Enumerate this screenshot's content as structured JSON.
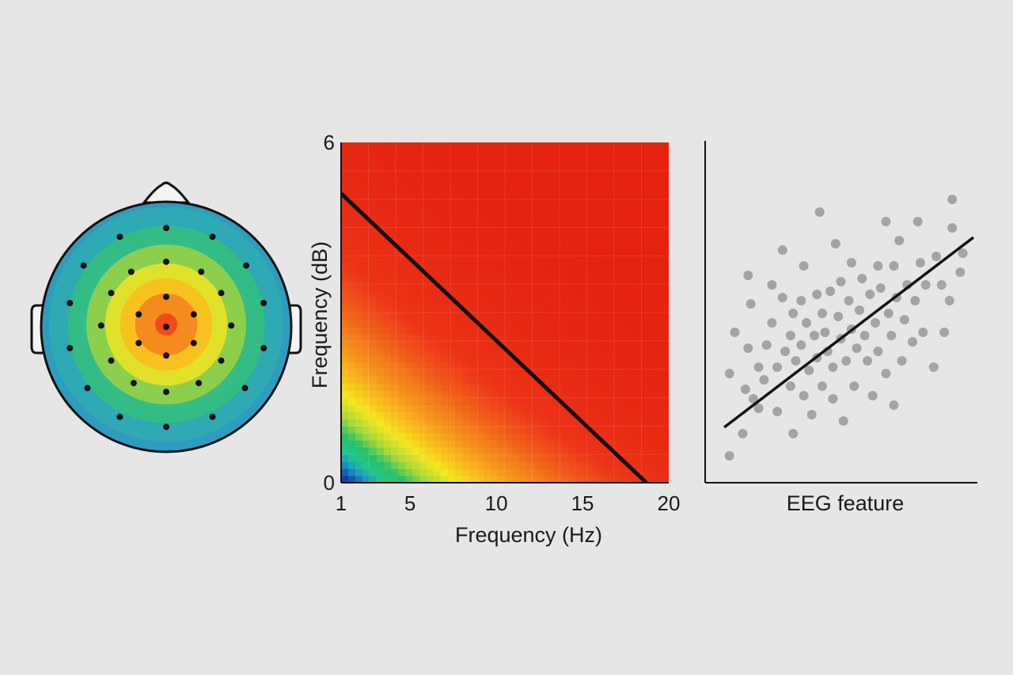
{
  "colors": {
    "background": "#e6e6e6",
    "axis": "#111111",
    "scatter_point": "#a4a4a4",
    "fit_line": "#111111",
    "electrode": "#111111",
    "colormap": [
      "#1a237e",
      "#0d4fb0",
      "#1b97c4",
      "#23c88c",
      "#28c068",
      "#a8d838",
      "#f4e620",
      "#f6b21c",
      "#f47a1c",
      "#ec3418",
      "#e4220e"
    ]
  },
  "chart_data": [
    {
      "type": "topomap",
      "rings": [
        {
          "level": 0.0,
          "color": "#2e9cbf"
        },
        {
          "level": 0.15,
          "color": "#2fa9b3"
        },
        {
          "level": 0.3,
          "color": "#34bc86"
        },
        {
          "level": 0.45,
          "color": "#8ccf4c"
        },
        {
          "level": 0.6,
          "color": "#e2e12a"
        },
        {
          "level": 0.72,
          "color": "#f7c21e"
        },
        {
          "level": 0.84,
          "color": "#f58a1e"
        },
        {
          "level": 1.0,
          "color": "#ef4a1c"
        }
      ],
      "electrodes": [
        {
          "x": 0.0,
          "y": 0.0
        },
        {
          "x": 0.0,
          "y": -0.24
        },
        {
          "x": -0.22,
          "y": -0.1
        },
        {
          "x": 0.22,
          "y": -0.1
        },
        {
          "x": -0.22,
          "y": 0.13
        },
        {
          "x": 0.22,
          "y": 0.13
        },
        {
          "x": 0.0,
          "y": 0.23
        },
        {
          "x": 0.0,
          "y": -0.52
        },
        {
          "x": -0.28,
          "y": -0.44
        },
        {
          "x": 0.28,
          "y": -0.44
        },
        {
          "x": -0.44,
          "y": -0.27
        },
        {
          "x": 0.44,
          "y": -0.27
        },
        {
          "x": -0.52,
          "y": -0.01
        },
        {
          "x": 0.52,
          "y": -0.01
        },
        {
          "x": -0.44,
          "y": 0.27
        },
        {
          "x": 0.44,
          "y": 0.27
        },
        {
          "x": -0.26,
          "y": 0.45
        },
        {
          "x": 0.26,
          "y": 0.45
        },
        {
          "x": 0.0,
          "y": 0.52
        },
        {
          "x": 0.0,
          "y": -0.79
        },
        {
          "x": -0.37,
          "y": -0.72
        },
        {
          "x": 0.37,
          "y": -0.72
        },
        {
          "x": -0.66,
          "y": -0.49
        },
        {
          "x": 0.64,
          "y": -0.49
        },
        {
          "x": -0.77,
          "y": -0.19
        },
        {
          "x": 0.78,
          "y": -0.19
        },
        {
          "x": -0.77,
          "y": 0.17
        },
        {
          "x": 0.78,
          "y": 0.17
        },
        {
          "x": -0.63,
          "y": 0.49
        },
        {
          "x": 0.63,
          "y": 0.49
        },
        {
          "x": -0.37,
          "y": 0.72
        },
        {
          "x": 0.37,
          "y": 0.72
        },
        {
          "x": 0.0,
          "y": 0.8
        }
      ]
    },
    {
      "type": "heatmap",
      "xlabel": "Frequency (Hz)",
      "ylabel": "Frequency (dB)",
      "x_ticks": [
        1,
        5,
        10,
        15,
        20
      ],
      "y_ticks": [
        0,
        6
      ],
      "xlim": [
        1,
        20
      ],
      "ylim": [
        0,
        6
      ],
      "grid": true,
      "intensity_model": "exponential decay along x and y from bottom-left (high) to top-right (low)",
      "decay_constant": 3.0,
      "line": {
        "x": [
          1,
          18.7
        ],
        "y": [
          5.1,
          0
        ]
      }
    },
    {
      "type": "scatter",
      "xlabel": "EEG feature",
      "ylabel": "",
      "xlim": [
        0,
        100
      ],
      "ylim": [
        0,
        100
      ],
      "fit_line": {
        "x": [
          6,
          100
        ],
        "y": [
          15,
          75
        ]
      },
      "points": [
        {
          "x": 8,
          "y": 6
        },
        {
          "x": 8,
          "y": 32
        },
        {
          "x": 10,
          "y": 45
        },
        {
          "x": 14,
          "y": 27
        },
        {
          "x": 13,
          "y": 13
        },
        {
          "x": 15,
          "y": 63
        },
        {
          "x": 16,
          "y": 54
        },
        {
          "x": 15,
          "y": 40
        },
        {
          "x": 17,
          "y": 24
        },
        {
          "x": 19,
          "y": 34
        },
        {
          "x": 19,
          "y": 21
        },
        {
          "x": 21,
          "y": 30
        },
        {
          "x": 22,
          "y": 41
        },
        {
          "x": 24,
          "y": 60
        },
        {
          "x": 24,
          "y": 48
        },
        {
          "x": 26,
          "y": 34
        },
        {
          "x": 26,
          "y": 20
        },
        {
          "x": 28,
          "y": 71
        },
        {
          "x": 28,
          "y": 56
        },
        {
          "x": 29,
          "y": 39
        },
        {
          "x": 31,
          "y": 44
        },
        {
          "x": 31,
          "y": 28
        },
        {
          "x": 32,
          "y": 13
        },
        {
          "x": 32,
          "y": 51
        },
        {
          "x": 33,
          "y": 36
        },
        {
          "x": 35,
          "y": 41
        },
        {
          "x": 35,
          "y": 55
        },
        {
          "x": 36,
          "y": 66
        },
        {
          "x": 36,
          "y": 25
        },
        {
          "x": 37,
          "y": 48
        },
        {
          "x": 38,
          "y": 33
        },
        {
          "x": 39,
          "y": 19
        },
        {
          "x": 40,
          "y": 44
        },
        {
          "x": 41,
          "y": 57
        },
        {
          "x": 41,
          "y": 37
        },
        {
          "x": 42,
          "y": 83
        },
        {
          "x": 43,
          "y": 28
        },
        {
          "x": 43,
          "y": 51
        },
        {
          "x": 44,
          "y": 45
        },
        {
          "x": 45,
          "y": 39
        },
        {
          "x": 46,
          "y": 58
        },
        {
          "x": 47,
          "y": 34
        },
        {
          "x": 47,
          "y": 24
        },
        {
          "x": 48,
          "y": 73
        },
        {
          "x": 49,
          "y": 50
        },
        {
          "x": 50,
          "y": 43
        },
        {
          "x": 50,
          "y": 61
        },
        {
          "x": 51,
          "y": 17
        },
        {
          "x": 52,
          "y": 36
        },
        {
          "x": 53,
          "y": 55
        },
        {
          "x": 54,
          "y": 67
        },
        {
          "x": 54,
          "y": 46
        },
        {
          "x": 55,
          "y": 28
        },
        {
          "x": 56,
          "y": 40
        },
        {
          "x": 57,
          "y": 52
        },
        {
          "x": 58,
          "y": 62
        },
        {
          "x": 59,
          "y": 44
        },
        {
          "x": 60,
          "y": 36
        },
        {
          "x": 61,
          "y": 57
        },
        {
          "x": 62,
          "y": 25
        },
        {
          "x": 63,
          "y": 48
        },
        {
          "x": 64,
          "y": 66
        },
        {
          "x": 64,
          "y": 39
        },
        {
          "x": 65,
          "y": 59
        },
        {
          "x": 67,
          "y": 32
        },
        {
          "x": 67,
          "y": 80
        },
        {
          "x": 68,
          "y": 51
        },
        {
          "x": 69,
          "y": 44
        },
        {
          "x": 70,
          "y": 66
        },
        {
          "x": 70,
          "y": 22
        },
        {
          "x": 71,
          "y": 56
        },
        {
          "x": 72,
          "y": 74
        },
        {
          "x": 73,
          "y": 36
        },
        {
          "x": 74,
          "y": 49
        },
        {
          "x": 75,
          "y": 60
        },
        {
          "x": 77,
          "y": 42
        },
        {
          "x": 78,
          "y": 55
        },
        {
          "x": 79,
          "y": 80
        },
        {
          "x": 80,
          "y": 67
        },
        {
          "x": 81,
          "y": 45
        },
        {
          "x": 82,
          "y": 60
        },
        {
          "x": 85,
          "y": 34
        },
        {
          "x": 86,
          "y": 69
        },
        {
          "x": 88,
          "y": 60
        },
        {
          "x": 89,
          "y": 45
        },
        {
          "x": 91,
          "y": 55
        },
        {
          "x": 92,
          "y": 78
        },
        {
          "x": 92,
          "y": 87
        },
        {
          "x": 95,
          "y": 64
        },
        {
          "x": 96,
          "y": 70
        }
      ]
    }
  ]
}
